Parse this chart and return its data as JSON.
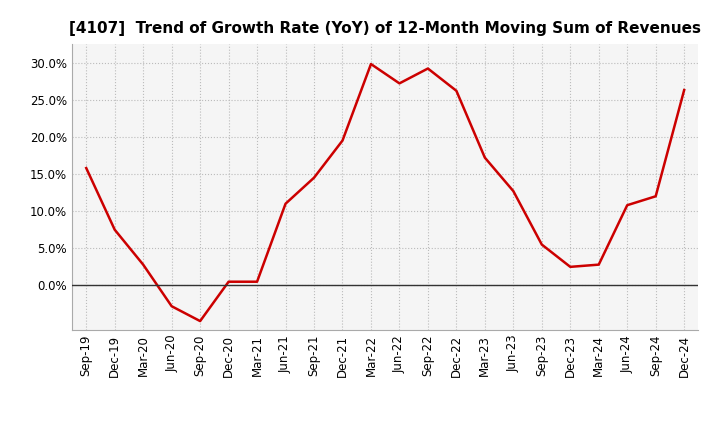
{
  "title": "[4107]  Trend of Growth Rate (YoY) of 12-Month Moving Sum of Revenues",
  "x_labels": [
    "Sep-19",
    "Dec-19",
    "Mar-20",
    "Jun-20",
    "Sep-20",
    "Dec-20",
    "Mar-21",
    "Jun-21",
    "Sep-21",
    "Dec-21",
    "Mar-22",
    "Jun-22",
    "Sep-22",
    "Dec-22",
    "Mar-23",
    "Jun-23",
    "Sep-23",
    "Dec-23",
    "Mar-24",
    "Jun-24",
    "Sep-24",
    "Dec-24"
  ],
  "y_values": [
    0.158,
    0.075,
    0.028,
    -0.028,
    -0.048,
    0.005,
    0.005,
    0.11,
    0.145,
    0.195,
    0.298,
    0.272,
    0.292,
    0.262,
    0.172,
    0.127,
    0.055,
    0.025,
    0.028,
    0.108,
    0.12,
    0.263
  ],
  "line_color": "#cc0000",
  "line_width": 1.8,
  "ylim": [
    -0.06,
    0.325
  ],
  "yticks": [
    0.0,
    0.05,
    0.1,
    0.15,
    0.2,
    0.25,
    0.3
  ],
  "ytick_labels": [
    "0.0%",
    "5.0%",
    "10.0%",
    "15.0%",
    "20.0%",
    "25.0%",
    "30.0%"
  ],
  "background_color": "#ffffff",
  "plot_bg_color": "#f5f5f5",
  "grid_color": "#bbbbbb",
  "zero_line_color": "#333333",
  "title_fontsize": 11,
  "tick_fontsize": 8.5
}
